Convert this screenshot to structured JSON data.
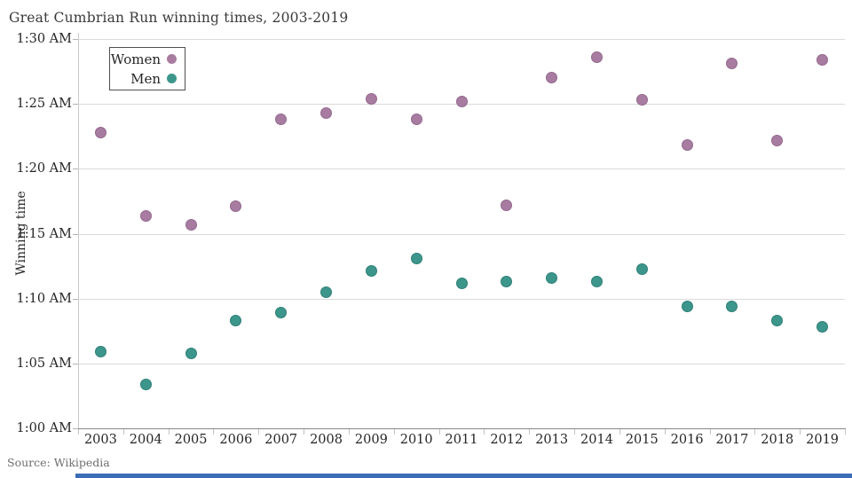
{
  "chart_data": {
    "type": "scatter",
    "title": "Great Cumbrian Run winning times, 2003-2019",
    "xlabel": "",
    "ylabel": "Winning time",
    "source": "Source: Wikipedia",
    "grid": "horizontal",
    "legend_position": "top-left-inside",
    "x": [
      2003,
      2004,
      2005,
      2006,
      2007,
      2008,
      2009,
      2010,
      2011,
      2012,
      2013,
      2014,
      2015,
      2016,
      2017,
      2018,
      2019
    ],
    "y_axis": {
      "unit": "time of day (AM)",
      "min_minutes": 60,
      "max_minutes": 90,
      "tick_step_minutes": 5,
      "tick_labels": [
        "1:00 AM",
        "1:05 AM",
        "1:10 AM",
        "1:15 AM",
        "1:20 AM",
        "1:25 AM",
        "1:30 AM"
      ]
    },
    "series": [
      {
        "name": "Women",
        "color": "#a87ca1",
        "edge_color": "#93688e",
        "values_minutes": [
          82.8,
          76.4,
          75.7,
          77.1,
          83.8,
          84.3,
          85.4,
          83.8,
          85.2,
          77.2,
          87.0,
          88.6,
          85.3,
          81.8,
          88.1,
          82.2,
          88.4
        ]
      },
      {
        "name": "Men",
        "color": "#3d968c",
        "edge_color": "#2e7f76",
        "values_minutes": [
          65.9,
          63.4,
          65.8,
          68.3,
          68.9,
          70.5,
          72.1,
          73.1,
          71.2,
          71.3,
          71.6,
          71.3,
          72.3,
          69.4,
          69.4,
          68.3,
          67.8
        ]
      }
    ]
  },
  "footer": {
    "bottom_bar_color": "#3b6cb5"
  }
}
